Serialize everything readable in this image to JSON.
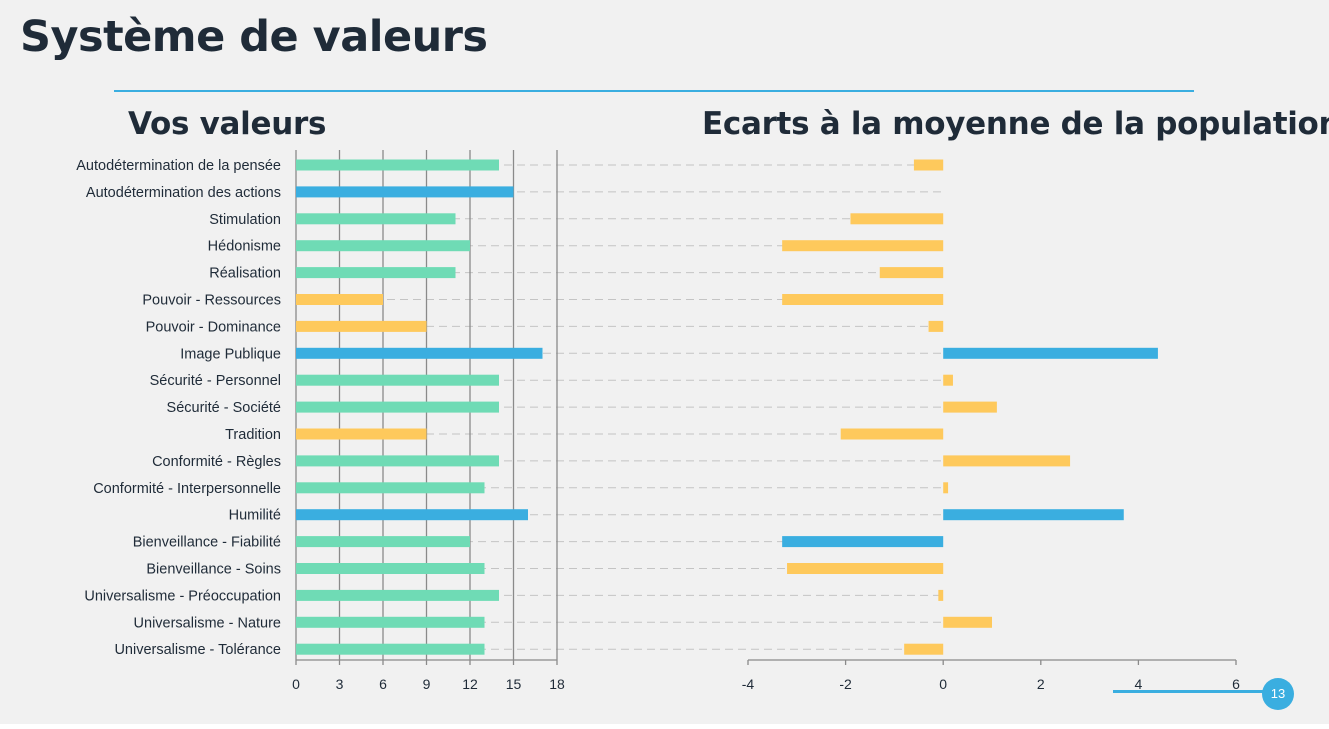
{
  "slide": {
    "title": "Système de valeurs",
    "page_number": "13"
  },
  "colors": {
    "green": "#6fdbb5",
    "blue": "#3aaee0",
    "yellow": "#fec95c",
    "grid": "#8a8a8a",
    "dash": "#c4c4c4",
    "text": "#1f2b38"
  },
  "chart_data": [
    {
      "type": "bar",
      "orientation": "horizontal",
      "title": "Vos valeurs",
      "categories": [
        "Autodétermination de la pensée",
        "Autodétermination des actions",
        "Stimulation",
        "Hédonisme",
        "Réalisation",
        "Pouvoir - Ressources",
        "Pouvoir - Dominance",
        "Image Publique",
        "Sécurité - Personnel",
        "Sécurité - Société",
        "Tradition",
        "Conformité - Règles",
        "Conformité - Interpersonnelle",
        "Humilité",
        "Bienveillance - Fiabilité",
        "Bienveillance - Soins",
        "Universalisme - Préoccupation",
        "Universalisme - Nature",
        "Universalisme - Tolérance"
      ],
      "values": [
        14,
        15,
        11,
        12,
        11,
        6,
        9,
        17,
        14,
        14,
        9,
        14,
        13,
        16,
        12,
        13,
        14,
        13,
        13
      ],
      "bar_colors": [
        "green",
        "blue",
        "green",
        "green",
        "green",
        "yellow",
        "yellow",
        "blue",
        "green",
        "green",
        "yellow",
        "green",
        "green",
        "blue",
        "green",
        "green",
        "green",
        "green",
        "green"
      ],
      "xlim": [
        0,
        18
      ],
      "xticks": [
        0,
        3,
        6,
        9,
        12,
        15,
        18
      ],
      "grid": true
    },
    {
      "type": "bar",
      "orientation": "horizontal",
      "title": "Ecarts à la moyenne de la population",
      "categories": [
        "Autodétermination de la pensée",
        "Autodétermination des actions",
        "Stimulation",
        "Hédonisme",
        "Réalisation",
        "Pouvoir - Ressources",
        "Pouvoir - Dominance",
        "Image Publique",
        "Sécurité - Personnel",
        "Sécurité - Société",
        "Tradition",
        "Conformité - Règles",
        "Conformité - Interpersonnelle",
        "Humilité",
        "Bienveillance - Fiabilité",
        "Bienveillance - Soins",
        "Universalisme - Préoccupation",
        "Universalisme - Nature",
        "Universalisme - Tolérance"
      ],
      "values": [
        -0.6,
        0,
        -1.9,
        -3.3,
        -1.3,
        -3.3,
        -0.3,
        4.4,
        0.2,
        1.1,
        -2.1,
        2.6,
        0.1,
        3.7,
        -3.3,
        -3.2,
        -0.1,
        1.0,
        -0.8
      ],
      "bar_colors": [
        "yellow",
        "yellow",
        "yellow",
        "yellow",
        "yellow",
        "yellow",
        "yellow",
        "blue",
        "yellow",
        "yellow",
        "yellow",
        "yellow",
        "yellow",
        "blue",
        "blue",
        "yellow",
        "yellow",
        "yellow",
        "yellow"
      ],
      "xlim": [
        -4,
        6
      ],
      "xticks": [
        -4,
        -2,
        0,
        2,
        4,
        6
      ],
      "grid": false
    }
  ]
}
